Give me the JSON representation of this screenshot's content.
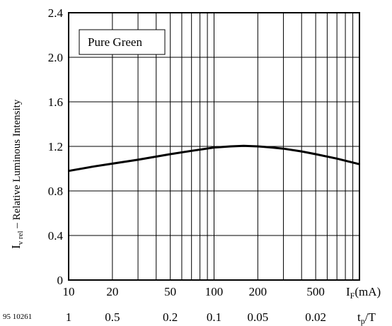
{
  "chart_data": {
    "type": "line",
    "x_scale": "log",
    "xlim": [
      10,
      1000
    ],
    "ylim": [
      0,
      2.4
    ],
    "grid": true,
    "legend": "Pure Green",
    "y_label_main": "I",
    "y_label_sub": "v rel",
    "y_label_rest": " – Relative Luminous Intensity",
    "x_label_main": "I",
    "x_label_sub": "F",
    "x_label_rest": "(mA)",
    "x2_label_main": "t",
    "x2_label_sub": "p",
    "x2_label_rest": "/T",
    "figure_code": "95 10261",
    "x_ticks": [
      {
        "value": 10,
        "label": "10"
      },
      {
        "value": 20,
        "label": "20"
      },
      {
        "value": 50,
        "label": "50"
      },
      {
        "value": 100,
        "label": "100"
      },
      {
        "value": 200,
        "label": "200"
      },
      {
        "value": 500,
        "label": "500"
      }
    ],
    "duty_ticks": [
      {
        "value": 10,
        "label": "1"
      },
      {
        "value": 20,
        "label": "0.5"
      },
      {
        "value": 50,
        "label": "0.2"
      },
      {
        "value": 100,
        "label": "0.1"
      },
      {
        "value": 200,
        "label": "0.05"
      },
      {
        "value": 500,
        "label": "0.02"
      }
    ],
    "y_ticks": [
      {
        "value": 0,
        "label": "0"
      },
      {
        "value": 0.4,
        "label": "0.4"
      },
      {
        "value": 0.8,
        "label": "0.8"
      },
      {
        "value": 1.2,
        "label": "1.2"
      },
      {
        "value": 1.6,
        "label": "1.6"
      },
      {
        "value": 2.0,
        "label": "2.0"
      },
      {
        "value": 2.4,
        "label": "2.4"
      }
    ],
    "series": [
      {
        "x": [
          10,
          15,
          20,
          30,
          50,
          70,
          100,
          130,
          160,
          200,
          250,
          300,
          400,
          500,
          700,
          1000
        ],
        "y": [
          0.98,
          1.02,
          1.045,
          1.08,
          1.13,
          1.16,
          1.19,
          1.2,
          1.205,
          1.2,
          1.19,
          1.18,
          1.155,
          1.13,
          1.09,
          1.04
        ]
      }
    ]
  }
}
